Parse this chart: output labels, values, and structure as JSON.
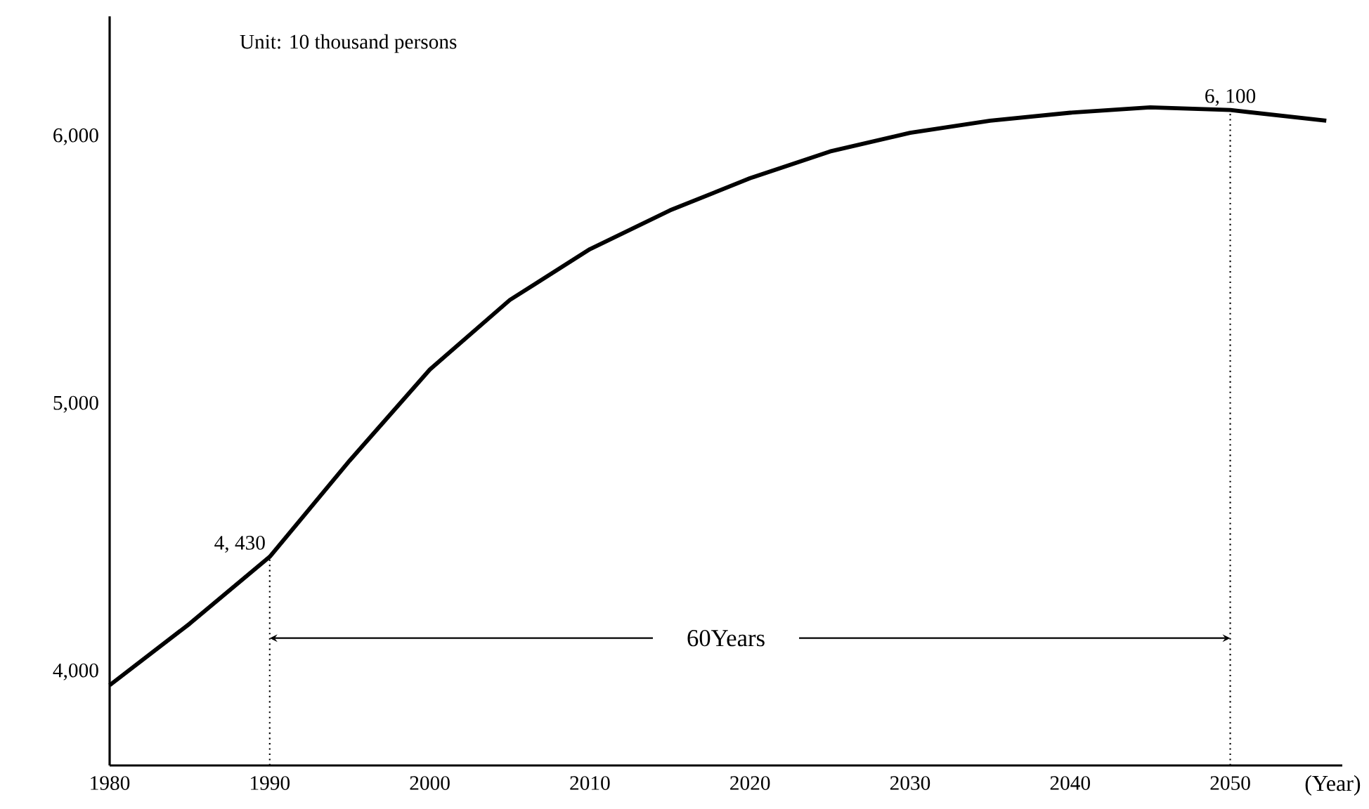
{
  "chart_data": {
    "type": "line",
    "xlabel": "(Year)",
    "x": [
      1980,
      1985,
      1990,
      1995,
      2000,
      2005,
      2010,
      2015,
      2020,
      2025,
      2030,
      2035,
      2040,
      2045,
      2050,
      2056
    ],
    "values": [
      3950,
      4180,
      4430,
      4790,
      5130,
      5390,
      5580,
      5725,
      5845,
      5945,
      6015,
      6060,
      6090,
      6110,
      6100,
      6060
    ],
    "color": "#000000",
    "marker": "none",
    "line_style": "solid",
    "grid": false,
    "xlim": [
      1980,
      2057
    ],
    "xticks": [
      1980,
      1990,
      2000,
      2010,
      2020,
      2030,
      2040,
      2050
    ],
    "ylim": [
      3650,
      6450
    ],
    "yticks": [
      {
        "value": 4000,
        "label": "4,000"
      },
      {
        "value": 5000,
        "label": "5,000"
      },
      {
        "value": 6000,
        "label": "6,000"
      }
    ],
    "ref_lines": [
      {
        "axis": "x",
        "value": 1990,
        "line_style": "dotted"
      },
      {
        "axis": "x",
        "value": 2050,
        "line_style": "dotted"
      }
    ],
    "annotations": [
      "Unit: 10 thousand persons",
      {
        "text": "4, 430",
        "x": 1990,
        "y": 4430
      },
      {
        "text": "6, 100",
        "x": 2050,
        "y": 6100
      },
      "60Years"
    ]
  }
}
